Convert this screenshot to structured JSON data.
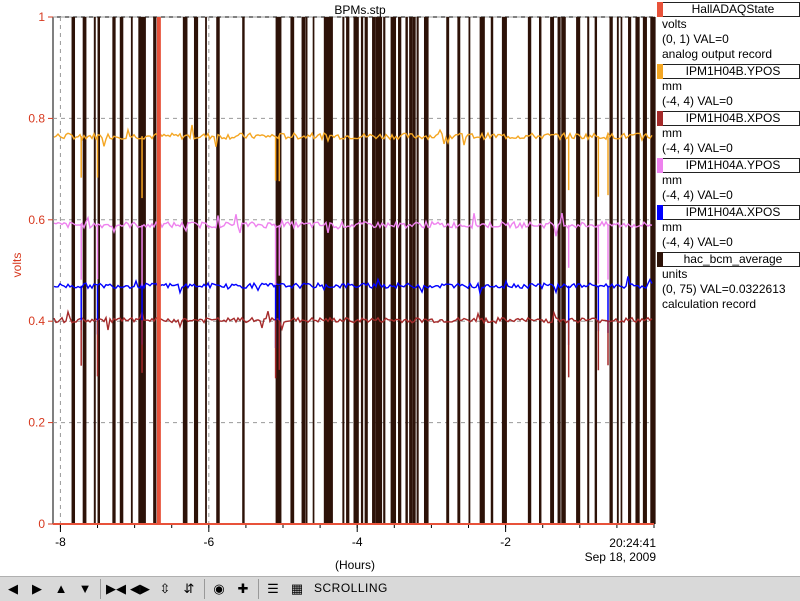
{
  "chart_data": {
    "type": "line",
    "title": "BPMs.stp",
    "ylabel": "volts",
    "xlabel": "(Hours)",
    "xlim": [
      -8.1,
      -0.0
    ],
    "ylim": [
      0,
      1
    ],
    "x_ticks": [
      -8,
      -6,
      -4,
      -2
    ],
    "y_ticks": [
      0,
      0.2,
      0.4,
      0.6,
      0.8,
      1
    ],
    "y_tick_labels": [
      "0",
      "0.2",
      "0.4",
      "0.6",
      "0.8",
      "1"
    ],
    "x_tick_labels": [
      "-8",
      "-6",
      "-4",
      "-2"
    ],
    "grid": true,
    "legend_position": "right",
    "series": [
      {
        "name": "HallADAQState",
        "color": "#e8523a",
        "baseline": 0.0
      },
      {
        "name": "IPM1H04B.YPOS",
        "color": "#f4a623",
        "baseline": 0.765
      },
      {
        "name": "IPM1H04B.XPOS",
        "color": "#a52a2a",
        "baseline": 0.402
      },
      {
        "name": "IPM1H04A.YPOS",
        "color": "#ee82ee",
        "baseline": 0.59
      },
      {
        "name": "IPM1H04A.XPOS",
        "color": "#0000ff",
        "baseline": 0.47
      },
      {
        "name": "hac_bcm_average",
        "color": "#2d1208"
      }
    ],
    "notes_spikes_hours": [
      -7.85,
      -7.7,
      -7.55,
      -7.5,
      -7.3,
      -7.2,
      -7.05,
      -6.95,
      -6.9,
      -6.75,
      -6.7,
      -6.35,
      -6.2,
      -6.05,
      -5.9,
      -5.55,
      -5.1,
      -5.05,
      -4.9,
      -4.75,
      -4.7,
      -4.6,
      -4.45,
      -4.4,
      -4.2,
      -4.15,
      -4.05,
      -3.95,
      -3.9,
      -3.8,
      -3.75,
      -3.7,
      -3.65,
      -3.55,
      -3.45,
      -3.35,
      -3.3,
      -3.25,
      -3.2,
      -3.1,
      -2.8,
      -2.65,
      -2.5,
      -2.35,
      -2.2,
      -2.05,
      -1.7,
      -1.55,
      -1.4,
      -1.3,
      -1.25,
      -1.05,
      -0.9,
      -0.8,
      -0.6,
      -0.5,
      -0.45,
      -0.35,
      -0.25,
      -0.15,
      -0.05
    ]
  },
  "time_label": {
    "time": "20:24:41",
    "date": "Sep 18, 2009"
  },
  "legend": [
    {
      "name": "HallADAQState",
      "color": "#e8523a",
      "lines": [
        "volts",
        "(0, 1) VAL=0",
        "analog output record"
      ]
    },
    {
      "name": "IPM1H04B.YPOS",
      "color": "#f4a623",
      "lines": [
        "mm",
        "(-4, 4) VAL=0"
      ]
    },
    {
      "name": "IPM1H04B.XPOS",
      "color": "#a52a2a",
      "lines": [
        "mm",
        "(-4, 4) VAL=0"
      ]
    },
    {
      "name": "IPM1H04A.YPOS",
      "color": "#ee82ee",
      "lines": [
        "mm",
        "(-4, 4) VAL=0"
      ]
    },
    {
      "name": "IPM1H04A.XPOS",
      "color": "#0000ff",
      "lines": [
        "mm",
        "(-4, 4) VAL=0"
      ]
    },
    {
      "name": "hac_bcm_average",
      "color": "#2d1208",
      "lines": [
        "units",
        "(0, 75) VAL=0.0322613",
        "calculation record"
      ]
    }
  ],
  "toolbar": {
    "buttons": [
      "left-arrow-icon",
      "right-arrow-icon",
      "up-arrow-icon",
      "down-arrow-icon",
      "zoom-in-horizontal-icon",
      "zoom-out-horizontal-icon",
      "zoom-in-vertical-icon",
      "zoom-out-vertical-icon",
      "autoscale-icon",
      "add-icon",
      "config-icon"
    ],
    "status": "SCROLLING"
  }
}
